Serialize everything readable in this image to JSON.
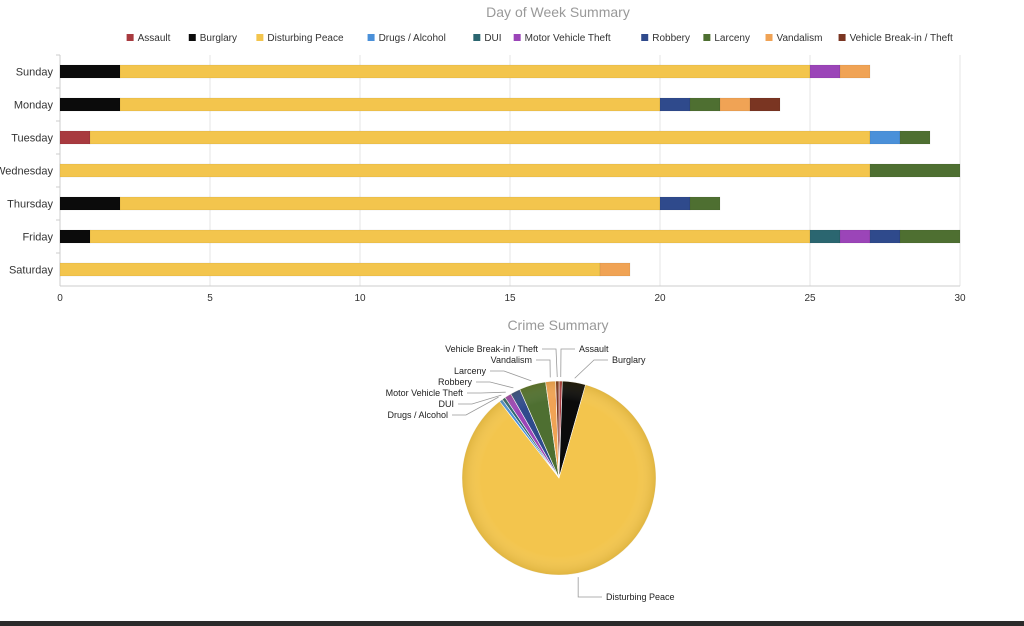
{
  "colors": {
    "Assault": "#a83a3f",
    "Burglary": "#0b0b0b",
    "Disturbing Peace": "#f3c54d",
    "Drugs / Alcohol": "#4a90d9",
    "DUI": "#2b6670",
    "Motor Vehicle Theft": "#9b45b8",
    "Robbery": "#2f4a8c",
    "Larceny": "#4e6f31",
    "Vandalism": "#f0a355",
    "Vehicle Break-in / Theft": "#7a3522"
  },
  "chart_data": [
    {
      "type": "bar",
      "orientation": "horizontal",
      "stacked": true,
      "title": "Day of Week Summary",
      "categories": [
        "Sunday",
        "Monday",
        "Tuesday",
        "Wednesday",
        "Thursday",
        "Friday",
        "Saturday"
      ],
      "xlim": [
        0,
        30
      ],
      "xticks": [
        0,
        5,
        10,
        15,
        20,
        25,
        30
      ],
      "grid": true,
      "legend_position": "top",
      "series": [
        {
          "name": "Assault",
          "values": [
            0,
            0,
            1,
            0,
            0,
            0,
            0
          ]
        },
        {
          "name": "Burglary",
          "values": [
            2,
            2,
            0,
            0,
            2,
            1,
            0
          ]
        },
        {
          "name": "Disturbing Peace",
          "values": [
            23,
            18,
            26,
            27,
            18,
            24,
            18
          ]
        },
        {
          "name": "Drugs / Alcohol",
          "values": [
            0,
            0,
            1,
            0,
            0,
            0,
            0
          ]
        },
        {
          "name": "DUI",
          "values": [
            0,
            0,
            0,
            0,
            0,
            1,
            0
          ]
        },
        {
          "name": "Motor Vehicle Theft",
          "values": [
            1,
            0,
            0,
            0,
            0,
            1,
            0
          ]
        },
        {
          "name": "Robbery",
          "values": [
            0,
            1,
            0,
            0,
            1,
            1,
            0
          ]
        },
        {
          "name": "Larceny",
          "values": [
            0,
            1,
            1,
            3,
            1,
            2,
            0
          ]
        },
        {
          "name": "Vandalism",
          "values": [
            1,
            1,
            0,
            0,
            0,
            0,
            1
          ]
        },
        {
          "name": "Vehicle Break-in / Theft",
          "values": [
            0,
            1,
            0,
            0,
            0,
            0,
            0
          ]
        }
      ]
    },
    {
      "type": "pie",
      "title": "Crime Summary",
      "labels": [
        "Assault",
        "Burglary",
        "Disturbing Peace",
        "Drugs / Alcohol",
        "DUI",
        "Motor Vehicle Theft",
        "Robbery",
        "Larceny",
        "Vandalism",
        "Vehicle Break-in / Theft"
      ],
      "values": [
        1,
        7,
        154,
        1,
        1,
        2,
        3,
        8,
        3,
        1
      ]
    }
  ]
}
